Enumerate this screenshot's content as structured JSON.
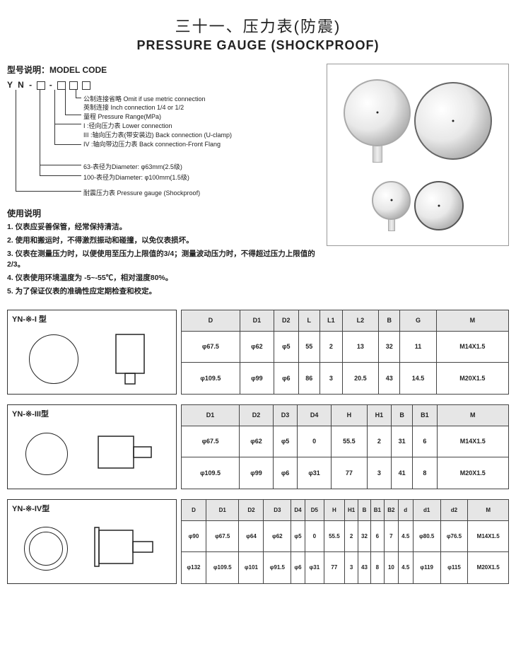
{
  "title_zh": "三十一、压力表(防震)",
  "title_en": "PRESSURE GAUGE (SHOCKPROOF)",
  "model_heading": "型号说明：MODEL CODE",
  "code_prefix": "Y N -",
  "code_lines": [
    "公制连接省略  Omit if use metric connection",
    "英制连接  Inch connection 1/4 or 1/2",
    "量程  Pressure Range(MPa)",
    "I :径向压力表  Lower connection",
    "III :轴向压力表(带安装边)  Back connection (U-clamp)",
    "IV :轴向带边压力表  Back connection-Front Flang",
    "63-表径为Diameter: φ63mm(2.5级)",
    "100-表径为Diameter: φ100mm(1.5级)",
    "耐震压力表 Pressure gauge (Shockproof)"
  ],
  "instr_head": "使用说明",
  "instructions": [
    "1. 仪表应妥善保管，经常保持清洁。",
    "2. 使用和搬运时，不得激烈振动和碰撞，以免仪表损坏。",
    "3. 仪表在测量压力时，以便使用至压力上限值的3/4；测量波动压力时，不得超过压力上限值的2/3。",
    "4. 仪表使用环境温度为 -5~-55℃，相对湿度80%。",
    "5. 为了保证仪表的准确性应定期检查和校定。"
  ],
  "sections": [
    {
      "title": "YN-※-I 型",
      "columns": [
        "D",
        "D1",
        "D2",
        "L",
        "L1",
        "L2",
        "B",
        "G",
        "M"
      ],
      "rows": [
        [
          "φ67.5",
          "φ62",
          "φ5",
          "55",
          "2",
          "13",
          "32",
          "11",
          "M14X1.5"
        ],
        [
          "φ109.5",
          "φ99",
          "φ6",
          "86",
          "3",
          "20.5",
          "43",
          "14.5",
          "M20X1.5"
        ]
      ]
    },
    {
      "title": "YN-※-III型",
      "columns": [
        "D1",
        "D2",
        "D3",
        "D4",
        "H",
        "H1",
        "B",
        "B1",
        "M"
      ],
      "rows": [
        [
          "φ67.5",
          "φ62",
          "φ5",
          "0",
          "55.5",
          "2",
          "31",
          "6",
          "M14X1.5"
        ],
        [
          "φ109.5",
          "φ99",
          "φ6",
          "φ31",
          "77",
          "3",
          "41",
          "8",
          "M20X1.5"
        ]
      ]
    },
    {
      "title": "YN-※-IV型",
      "columns": [
        "D",
        "D1",
        "D2",
        "D3",
        "D4",
        "D5",
        "H",
        "H1",
        "B",
        "B1",
        "B2",
        "d",
        "d1",
        "d2",
        "M"
      ],
      "rows": [
        [
          "φ90",
          "φ67.5",
          "φ64",
          "φ62",
          "φ5",
          "0",
          "55.5",
          "2",
          "32",
          "6",
          "7",
          "4.5",
          "φ80.5",
          "φ76.5",
          "M14X1.5"
        ],
        [
          "φ132",
          "φ109.5",
          "φ101",
          "φ91.5",
          "φ6",
          "φ31",
          "77",
          "3",
          "43",
          "8",
          "10",
          "4.5",
          "φ119",
          "φ115",
          "M20X1.5"
        ]
      ]
    }
  ]
}
